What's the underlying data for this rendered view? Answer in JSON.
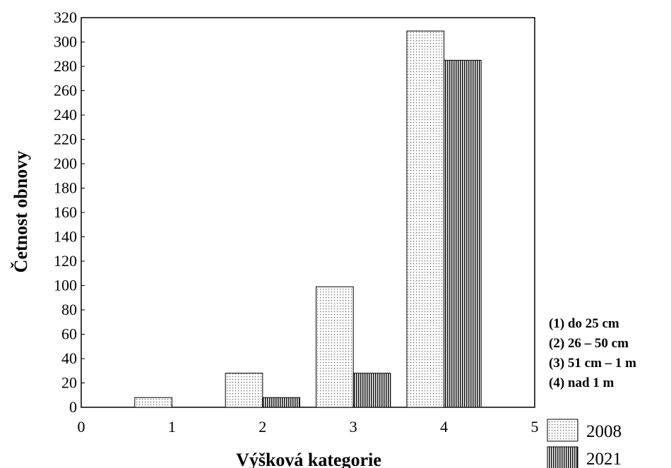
{
  "chart_data": {
    "type": "bar",
    "xlabel": "Výšková kategorie",
    "ylabel": "Četnost obnovy",
    "categories": [
      1,
      2,
      3,
      4
    ],
    "series": [
      {
        "name": "2008",
        "values": [
          8,
          28,
          99,
          309
        ],
        "pattern": "dots"
      },
      {
        "name": "2021",
        "values": [
          0,
          8,
          28,
          285
        ],
        "pattern": "vertical-lines"
      }
    ],
    "xlim": [
      0,
      5
    ],
    "ylim": [
      0,
      320
    ],
    "x_ticks": [
      "0",
      "1",
      "2",
      "3",
      "4",
      "5"
    ],
    "y_ticks": [
      "0",
      "20",
      "40",
      "60",
      "80",
      "100",
      "120",
      "140",
      "160",
      "180",
      "200",
      "220",
      "240",
      "260",
      "280",
      "300",
      "320"
    ],
    "grid": false,
    "legend_position": "bottom-right outside",
    "annotations": [
      "(1) do 25 cm",
      "(2) 26 – 50 cm",
      "(3) 51 cm – 1 m",
      "(4) nad 1 m"
    ]
  }
}
